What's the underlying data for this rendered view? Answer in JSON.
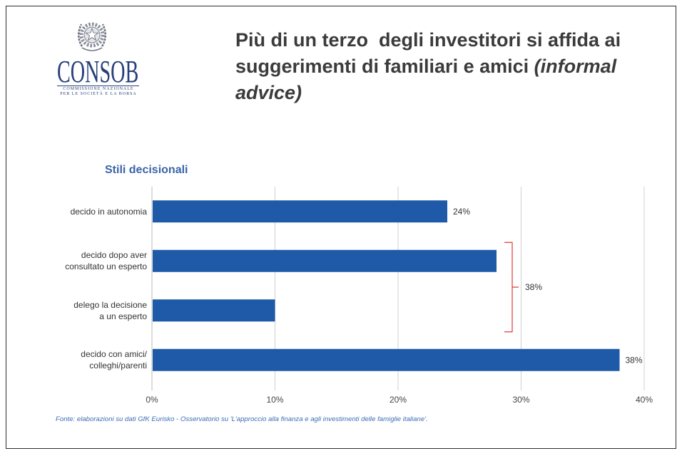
{
  "theme": {
    "brand_navy": "#27407a",
    "accent_blue": "#3a64a8",
    "source_blue": "#3d6db5"
  },
  "logo": {
    "emblem_icon": "italian-republic-emblem-icon",
    "name": "CONSOB",
    "subtitle_line1": "COMMISSIONE NAZIONALE",
    "subtitle_line2": "PER LE SOCIETÀ E LA BORSA"
  },
  "title": {
    "main": "Più di un terzo  degli investitori si affida ai suggerimenti di familiari e amici",
    "italic": "(informal advice)"
  },
  "chart_data": {
    "type": "bar",
    "orientation": "horizontal",
    "title": "Stili decisionali",
    "categories": [
      "decido in autonomia",
      "decido dopo aver\nconsultato un esperto",
      "delego la decisione\na un esperto",
      "decido con amici/\ncolleghi/parenti"
    ],
    "values": [
      24,
      28,
      10,
      38
    ],
    "data_labels": [
      {
        "index": 0,
        "text": "24%"
      },
      {
        "index": 3,
        "text": "38%"
      }
    ],
    "xlim": [
      0,
      40
    ],
    "xticks": [
      0,
      10,
      20,
      30,
      40
    ],
    "xtick_labels": [
      "0%",
      "10%",
      "20%",
      "30%",
      "40%"
    ],
    "grid": true,
    "legend": false,
    "bar_color": "#1e5aa8",
    "annotations": [
      {
        "text": "38%",
        "spans_categories": [
          1,
          2
        ],
        "color": "#e0393e"
      }
    ]
  },
  "source": "Fonte: elaborazioni su dati GfK Eurisko - Osservatorio su 'L'approccio alla finanza e agli investimenti delle famiglie italiane'."
}
